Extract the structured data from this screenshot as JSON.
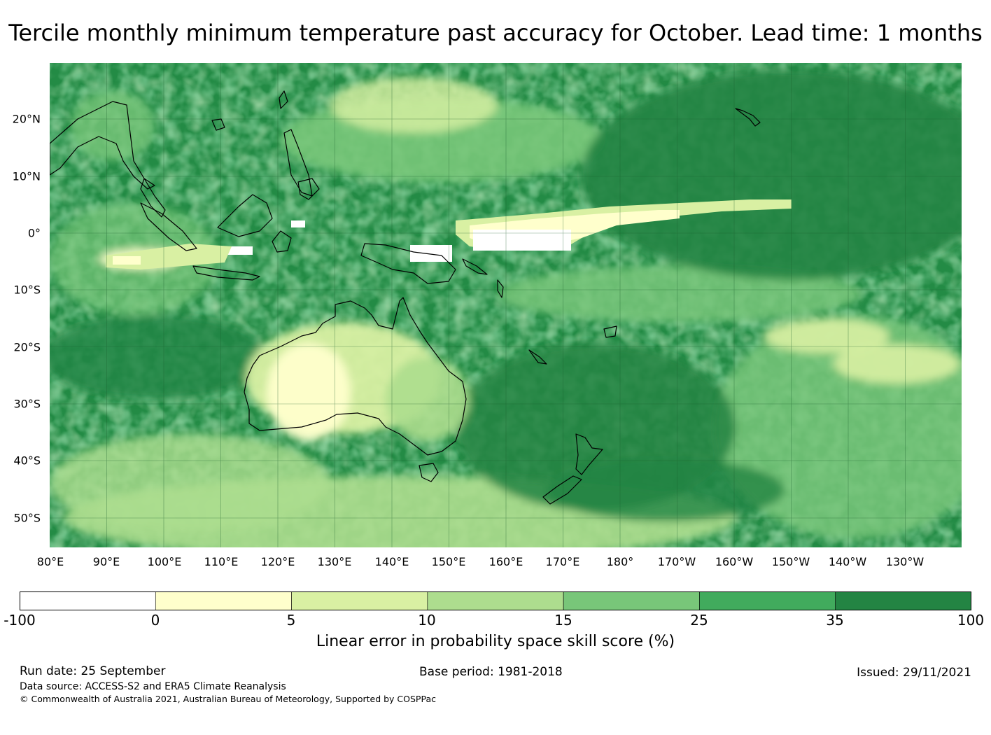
{
  "title": "Tercile monthly minimum temperature past accuracy for October. Lead time: 1 months",
  "map": {
    "longitude_labels": [
      "80°E",
      "90°E",
      "100°E",
      "110°E",
      "120°E",
      "130°E",
      "140°E",
      "150°E",
      "160°E",
      "170°E",
      "180°",
      "170°W",
      "160°W",
      "150°W",
      "140°W",
      "130°W"
    ],
    "latitude_labels": [
      "20°N",
      "10°N",
      "0°",
      "10°S",
      "20°S",
      "30°S",
      "40°S",
      "50°S"
    ],
    "background_color": "#238b45"
  },
  "colorbar": {
    "title": "Linear error in probability space skill score (%)",
    "tick_labels": [
      "-100",
      "0",
      "5",
      "10",
      "15",
      "25",
      "35",
      "100"
    ],
    "bins": [
      {
        "from": -100,
        "to": 0,
        "color": "#ffffff"
      },
      {
        "from": 0,
        "to": 5,
        "color": "#ffffcc"
      },
      {
        "from": 5,
        "to": 10,
        "color": "#d9f0a3"
      },
      {
        "from": 10,
        "to": 15,
        "color": "#addd8e"
      },
      {
        "from": 15,
        "to": 25,
        "color": "#78c679"
      },
      {
        "from": 25,
        "to": 35,
        "color": "#41ab5d"
      },
      {
        "from": 35,
        "to": 100,
        "color": "#238443"
      }
    ]
  },
  "footer": {
    "run_date": "Run date: 25 September",
    "base_period": "Base period: 1981-2018",
    "issued": "Issued: 29/11/2021",
    "data_source": "Data source: ACCESS-S2 and ERA5 Climate Reanalysis",
    "copyright": "© Commonwealth of Australia 2021, Australian Bureau of Meteorology, Supported by COSPPac"
  }
}
